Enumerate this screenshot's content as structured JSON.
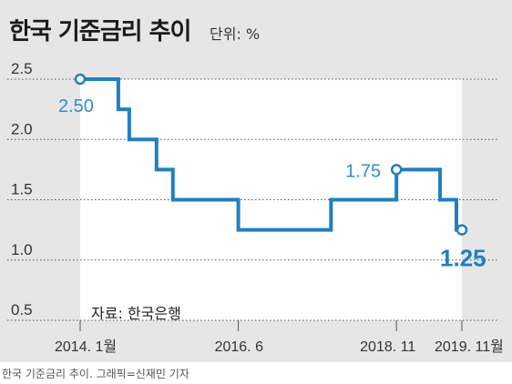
{
  "title": "한국 기준금리 추이",
  "unit": "단위: %",
  "source": "자료: 한국은행",
  "caption": "한국 기준금리 추이. 그래픽=신재민 기자",
  "chart_data": {
    "type": "line",
    "title": "한국 기준금리 추이",
    "ylabel": "",
    "xlabel": "",
    "ylim": [
      0.5,
      2.5
    ],
    "yticks": [
      "2.5",
      "2.0",
      "1.5",
      "1.0",
      "0.5"
    ],
    "yticks_values": [
      2.5,
      2.0,
      1.5,
      1.0,
      0.5
    ],
    "xticks": [
      "2014. 1월",
      "2016. 6",
      "2018. 11",
      "2019. 11월"
    ],
    "grid": true,
    "step": true,
    "x": [
      "2014.01",
      "2014.08",
      "2014.10",
      "2015.03",
      "2015.06",
      "2016.06",
      "2017.11",
      "2018.11",
      "2019.07",
      "2019.10",
      "2019.11"
    ],
    "values": [
      2.5,
      2.25,
      2.0,
      1.75,
      1.5,
      1.25,
      1.5,
      1.75,
      1.5,
      1.25,
      1.25
    ],
    "color": "#1f7fc4",
    "annotations": [
      {
        "text": "2.50",
        "x": "2014.01",
        "y": 2.5
      },
      {
        "text": "1.75",
        "x": "2018.11",
        "y": 1.75
      },
      {
        "text": "1.25",
        "x": "2019.11",
        "y": 1.25
      }
    ]
  }
}
